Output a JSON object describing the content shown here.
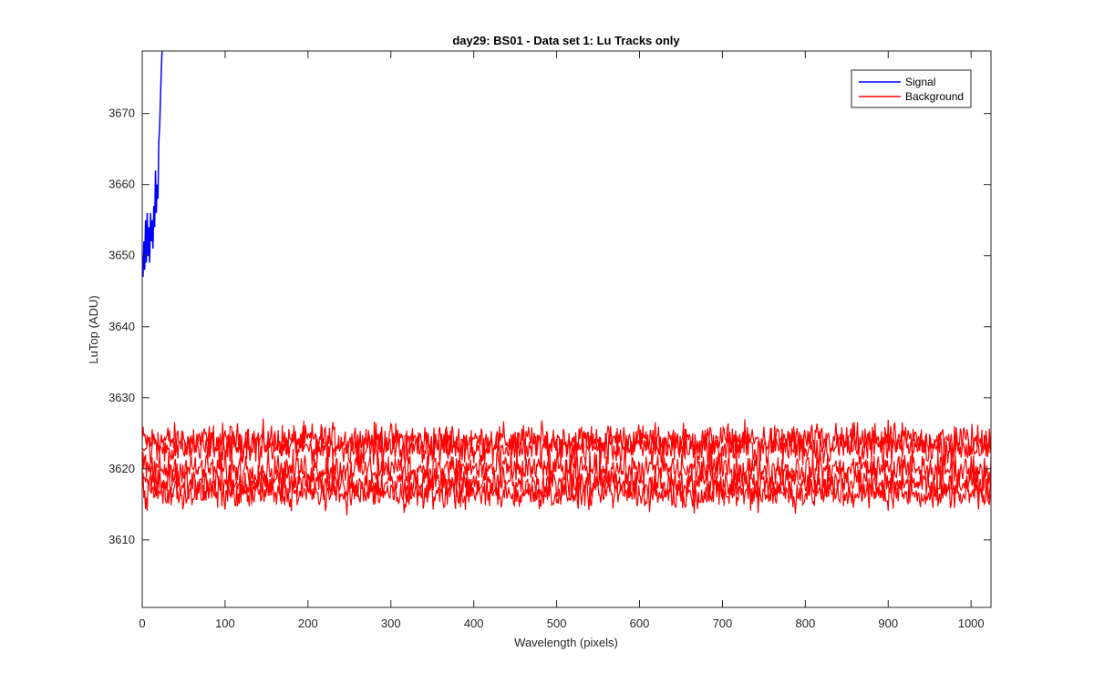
{
  "chart_data": {
    "type": "line",
    "title": "day29: BS01 - Data set 1: Lu Tracks only",
    "xlabel": "Wavelength (pixels)",
    "ylabel": "LuTop (ADU)",
    "xlim": [
      0,
      1024
    ],
    "ylim": [
      3600.5,
      3678.8
    ],
    "xticks": [
      0,
      100,
      200,
      300,
      400,
      500,
      600,
      700,
      800,
      900,
      1000
    ],
    "yticks": [
      3610,
      3620,
      3630,
      3640,
      3650,
      3660,
      3670
    ],
    "grid": false,
    "legend_position": "top-right",
    "series": [
      {
        "name": "Signal",
        "color": "#0000ff",
        "x": [
          0,
          1,
          2,
          3,
          4,
          5,
          6,
          7,
          8,
          9,
          10,
          11,
          12,
          13,
          14,
          15,
          16,
          17,
          18,
          19,
          20,
          21,
          22,
          23,
          24
        ],
        "y": [
          3650,
          3647,
          3652,
          3648,
          3655,
          3649,
          3656,
          3650,
          3654,
          3649,
          3656,
          3652,
          3655,
          3651,
          3657,
          3654,
          3662,
          3656,
          3660,
          3658,
          3666,
          3668,
          3672,
          3676,
          3679
        ]
      },
      {
        "name": "Background",
        "color": "#ff0000",
        "x_range": [
          0,
          1024
        ],
        "band": {
          "min": 3611,
          "max": 3629,
          "upper_center": 3624,
          "lower_center": 3618
        }
      }
    ]
  }
}
